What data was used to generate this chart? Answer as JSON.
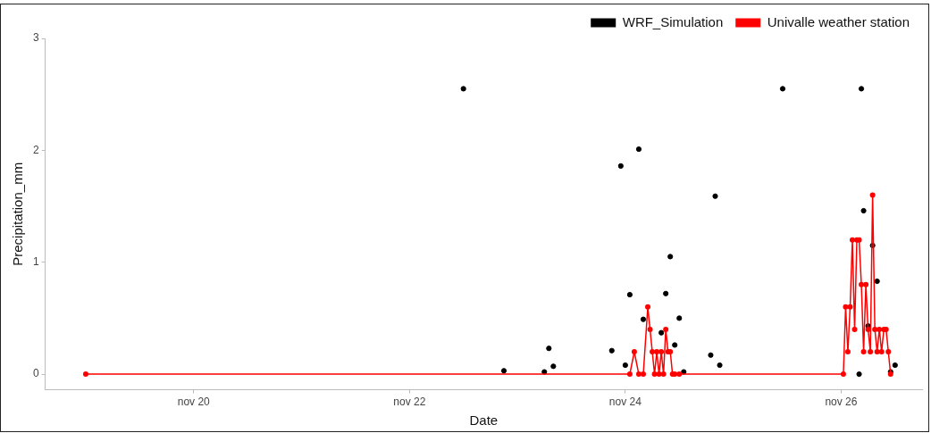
{
  "chart_data": {
    "type": "line",
    "xlabel": "Date",
    "ylabel": "Precipitation_mm",
    "xlim": [
      "--11-18T15:00",
      "--11-26T18:00"
    ],
    "xticks": [
      {
        "value": "--11-20",
        "label": "nov 20"
      },
      {
        "value": "--11-22",
        "label": "nov 22"
      },
      {
        "value": "--11-24",
        "label": "nov 24"
      },
      {
        "value": "--11-26",
        "label": "nov 26"
      }
    ],
    "ylim": [
      -0.14,
      3
    ],
    "yticks": [
      0,
      1,
      2,
      3
    ],
    "grid": false,
    "legend": "top right",
    "marker": "circle",
    "series": [
      {
        "name": "WRF_Simulation",
        "type": "scatter",
        "color": "#000000",
        "x": [
          "--11-22T12:00",
          "--11-22T21:00",
          "--11-23T06:00",
          "--11-23T07:00",
          "--11-23T08:00",
          "--11-23T21:00",
          "--11-23T23:00",
          "--11-24T00:00",
          "--11-24T01:00",
          "--11-24T03:00",
          "--11-24T04:00",
          "--11-24T08:00",
          "--11-24T09:00",
          "--11-24T10:00",
          "--11-24T11:00",
          "--11-24T12:00",
          "--11-24T13:00",
          "--11-24T19:00",
          "--11-24T20:00",
          "--11-24T21:00",
          "--11-25T11:00",
          "--11-26T04:00",
          "--11-26T05:00",
          "--11-26T06:00",
          "--11-26T07:00",
          "--11-26T08:00",
          "--11-26T04:30",
          "--11-26T11:00",
          "--11-26T12:00"
        ],
        "values": [
          2.55,
          0.03,
          0.02,
          0.23,
          0.07,
          0.21,
          1.86,
          0.08,
          0.71,
          2.01,
          0.49,
          0.37,
          0.72,
          1.05,
          0.26,
          0.5,
          0.02,
          0.17,
          1.59,
          0.08,
          2.55,
          0,
          1.46,
          0.43,
          1.15,
          0.83,
          2.55,
          0.02,
          0.08
        ]
      },
      {
        "name": "Univalle weather station",
        "type": "line",
        "color": "#ff0000",
        "x": [
          "--11-19T00:00",
          "--11-24T01:00",
          "--11-24T02:00",
          "--11-24T03:00",
          "--11-24T04:00",
          "--11-24T05:00",
          "--11-24T05:30",
          "--11-24T06:00",
          "--11-24T06:30",
          "--11-24T07:00",
          "--11-24T07:30",
          "--11-24T08:00",
          "--11-24T08:30",
          "--11-24T09:00",
          "--11-24T09:30",
          "--11-24T10:00",
          "--11-24T10:30",
          "--11-24T11:00",
          "--11-24T12:00",
          "--11-26T00:30",
          "--11-26T01:00",
          "--11-26T01:30",
          "--11-26T02:00",
          "--11-26T02:30",
          "--11-26T03:00",
          "--11-26T03:30",
          "--11-26T04:00",
          "--11-26T04:30",
          "--11-26T05:00",
          "--11-26T05:30",
          "--11-26T06:00",
          "--11-26T06:30",
          "--11-26T07:00",
          "--11-26T07:30",
          "--11-26T08:00",
          "--11-26T08:30",
          "--11-26T09:00",
          "--11-26T09:30",
          "--11-26T10:00",
          "--11-26T10:30",
          "--11-26T11:00"
        ],
        "values": [
          0,
          0,
          0.2,
          0,
          0,
          0.6,
          0.4,
          0.2,
          0,
          0.2,
          0,
          0.2,
          0,
          0.4,
          0.2,
          0.2,
          0,
          0,
          0,
          0,
          0.6,
          0.2,
          0.6,
          1.2,
          0.4,
          1.2,
          1.2,
          0.8,
          0.2,
          0.8,
          0.4,
          0.2,
          1.6,
          0.4,
          0.2,
          0.4,
          0.2,
          0.4,
          0.4,
          0.2,
          0
        ]
      }
    ]
  }
}
